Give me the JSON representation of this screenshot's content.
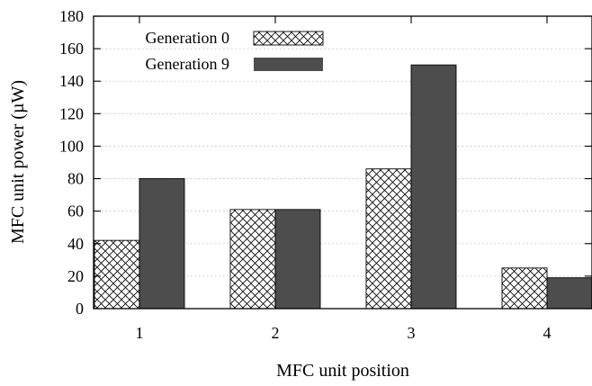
{
  "chart_data": {
    "type": "bar",
    "xlabel": "MFC unit position",
    "ylabel": "MFC unit power (µW)",
    "categories": [
      "1",
      "2",
      "3",
      "4"
    ],
    "ylim": [
      0,
      180
    ],
    "yticks": [
      "0",
      "20",
      "40",
      "60",
      "80",
      "100",
      "120",
      "140",
      "160",
      "180"
    ],
    "grid": true,
    "legend_position": "top-left",
    "series": [
      {
        "name": "Generation 0",
        "values": [
          42,
          61,
          86,
          25
        ],
        "pattern": "crosshatch",
        "color": "#ffffff"
      },
      {
        "name": "Generation 9",
        "values": [
          80,
          61,
          150,
          19
        ],
        "pattern": "solid",
        "color": "#4d4d4d"
      }
    ]
  }
}
